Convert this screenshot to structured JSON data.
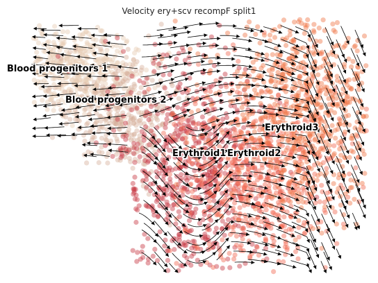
{
  "chart_data": {
    "type": "scatter",
    "title": "Velocity ery+scv recompF split1",
    "xlabel": "",
    "ylabel": "",
    "axes_visible": false,
    "grid": false,
    "legend": "on data",
    "overlay": "velocity stream lines with arrowheads",
    "clusters": [
      {
        "name": "Blood progenitors 1",
        "color": "#e7cbb3"
      },
      {
        "name": "Blood progenitors 2",
        "color": "#d8b29d"
      },
      {
        "name": "Erythroid1",
        "color": "#c73a45"
      },
      {
        "name": "Erythroid2",
        "color": "#f26b55"
      },
      {
        "name": "Erythroid3",
        "color": "#f0784a"
      }
    ]
  }
}
